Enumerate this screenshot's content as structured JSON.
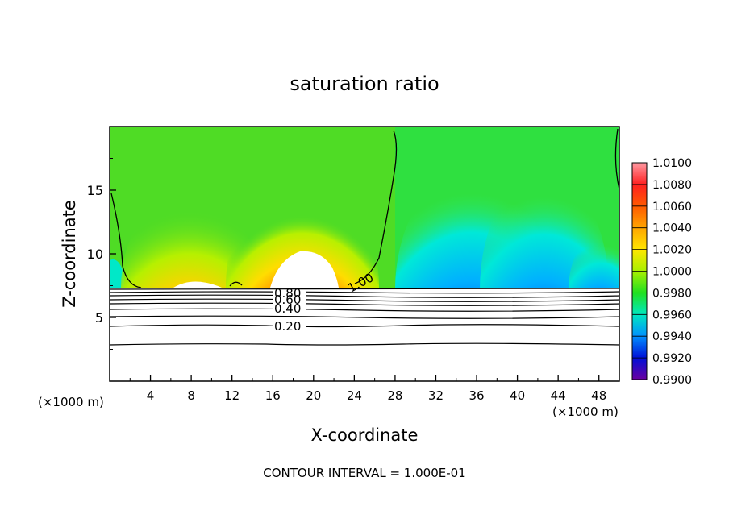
{
  "chart_data": {
    "type": "heatmap",
    "title": "saturation ratio",
    "xlabel": "X-coordinate",
    "ylabel": "Z-coordinate",
    "x_unit": "(×1000 m)",
    "z_unit": "(×1000 m)",
    "xlim": [
      0,
      50
    ],
    "ylim": [
      0,
      20
    ],
    "x_ticks": [
      4,
      8,
      12,
      16,
      20,
      24,
      28,
      32,
      36,
      40,
      44,
      48
    ],
    "y_ticks": [
      5,
      10,
      15
    ],
    "footer": "CONTOUR INTERVAL = 1.000E-01",
    "colorbar": {
      "min": 0.99,
      "max": 1.01,
      "labels": [
        "1.0100",
        "1.0080",
        "1.0060",
        "1.0040",
        "1.0020",
        "1.0000",
        "0.9980",
        "0.9960",
        "0.9940",
        "0.9920",
        "0.9900"
      ]
    },
    "contour_labels": [
      "1.00",
      "0.80",
      "0.60",
      "0.40",
      "0.20"
    ],
    "field_cells": [
      {
        "x": [
          0,
          2
        ],
        "z": [
          7.4,
          20
        ],
        "value": 0.9988
      },
      {
        "x": [
          2,
          12
        ],
        "z": [
          7.4,
          20
        ],
        "value": 1.0008
      },
      {
        "x": [
          14,
          24
        ],
        "z": [
          7.4,
          20
        ],
        "value": 1.0012
      },
      {
        "x": [
          24,
          28
        ],
        "z": [
          7.4,
          20
        ],
        "value": 0.9997
      },
      {
        "x": [
          28,
          50
        ],
        "z": [
          7.4,
          20
        ],
        "value": 0.9958
      }
    ],
    "low_level_contours": [
      0.2,
      0.4,
      0.6,
      0.8
    ]
  }
}
